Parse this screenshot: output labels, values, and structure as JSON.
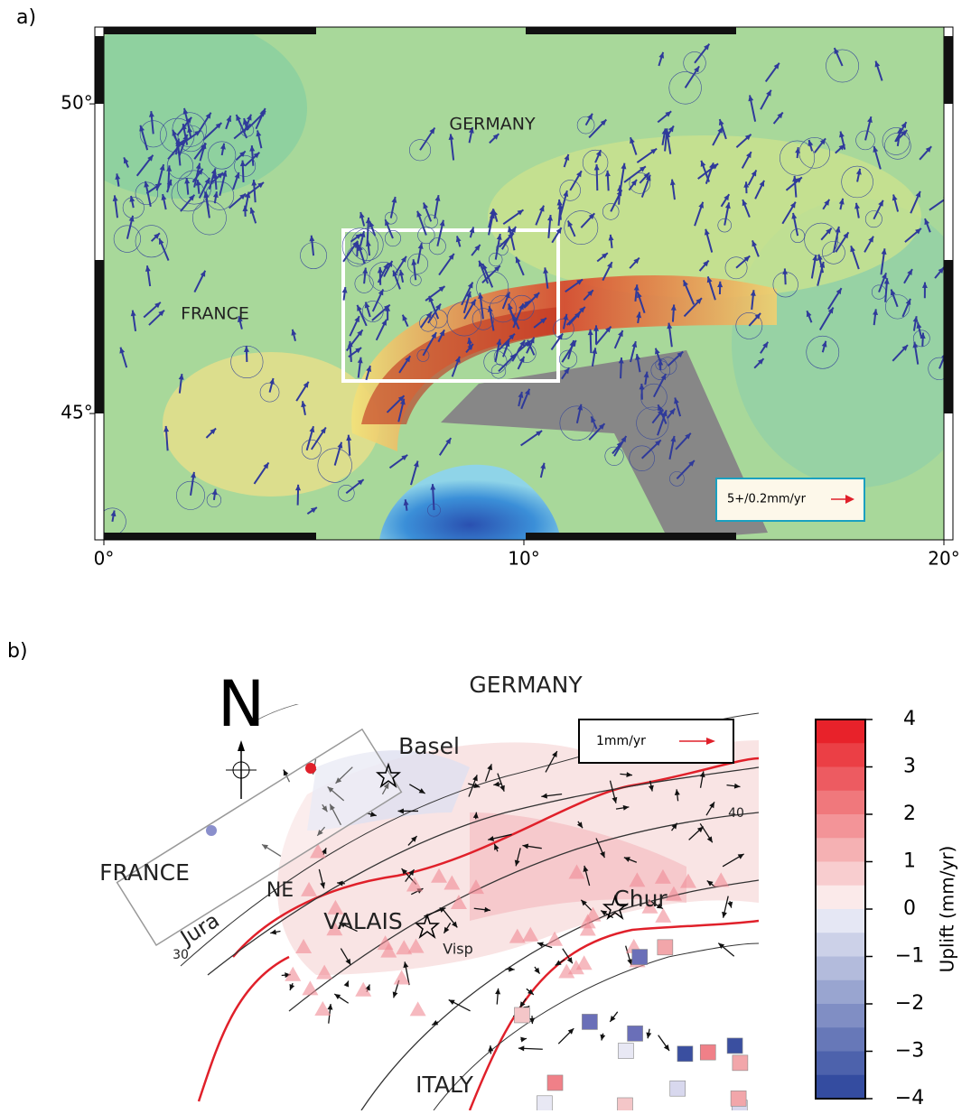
{
  "panels": [
    {
      "label": "a)",
      "map": {
        "xlim": [
          0,
          20
        ],
        "ylim": [
          42.96,
          51.24
        ],
        "xticks": [
          {
            "value": 0,
            "label": "0°"
          },
          {
            "value": 10,
            "label": "10°"
          },
          {
            "value": 20,
            "label": "20°"
          }
        ],
        "yticks": [
          {
            "value": 45,
            "label": "45°"
          },
          {
            "value": 50,
            "label": "50°"
          }
        ],
        "labels": [
          "GERMANY",
          "FRANCE"
        ],
        "legend": "5+/0.2mm/yr"
      }
    },
    {
      "label": "b)",
      "map": {
        "labels": [
          "N",
          "GERMANY",
          "Basel",
          "FRANCE",
          "Jura",
          "NE",
          "Chur",
          "VALAIS",
          "Visp",
          "ITALY",
          "30",
          "40"
        ],
        "legend": "1mm/yr"
      },
      "colorbar": {
        "ylim": [
          -4,
          4
        ],
        "ticks": [
          4,
          3,
          2,
          1,
          0,
          {
            "value": -1,
            "label": "−1"
          },
          {
            "value": -2,
            "label": "−2"
          },
          {
            "value": -3,
            "label": "−3"
          },
          {
            "value": -4,
            "label": "−4"
          }
        ],
        "label": "Uplift (mm/yr)"
      }
    }
  ]
}
